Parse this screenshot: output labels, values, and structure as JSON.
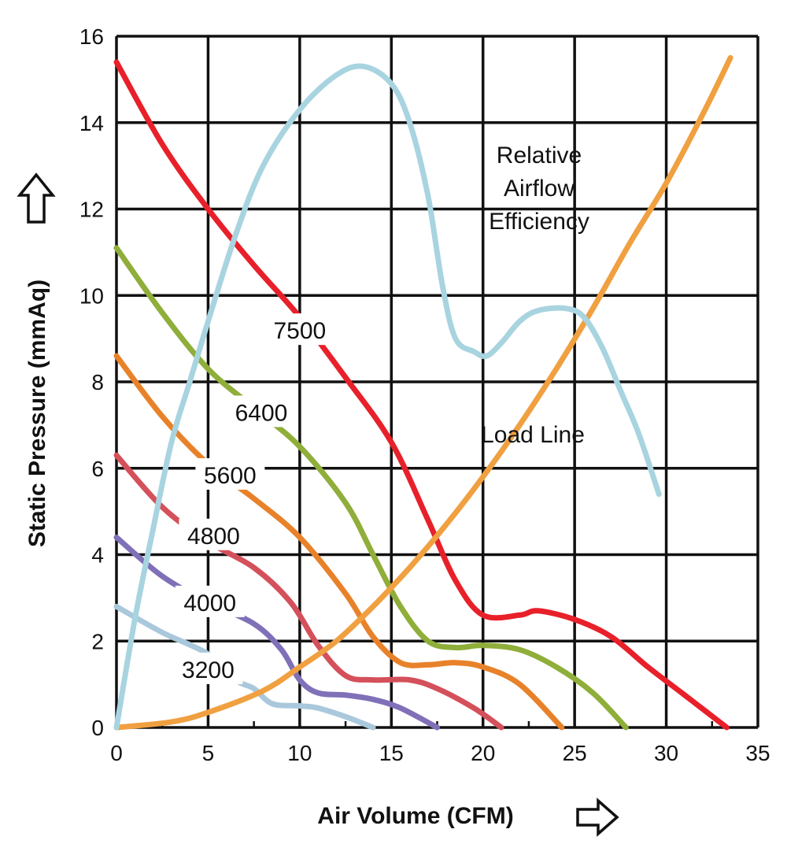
{
  "chart_data": {
    "type": "line",
    "xlabel": "Air Volume (CFM)",
    "ylabel": "Static Pressure (mmAq)",
    "xlim": [
      0,
      35
    ],
    "ylim": [
      0,
      16
    ],
    "xticks": [
      0,
      5,
      10,
      15,
      20,
      25,
      30,
      35
    ],
    "yticks": [
      0,
      2,
      4,
      6,
      8,
      10,
      12,
      14,
      16
    ],
    "grid": true,
    "annotations": [
      {
        "id": "efficiency",
        "lines": [
          "Relative",
          "Airflow",
          "Efficiency"
        ]
      },
      {
        "id": "load",
        "lines": [
          "Load Line"
        ]
      }
    ],
    "series": [
      {
        "name": "7500",
        "color": "#e8202a",
        "label_at": [
          10,
          9.2
        ],
        "points": [
          [
            0,
            15.4
          ],
          [
            2.5,
            13.5
          ],
          [
            5,
            12.0
          ],
          [
            7.5,
            10.7
          ],
          [
            10,
            9.5
          ],
          [
            12.5,
            8.1
          ],
          [
            15,
            6.6
          ],
          [
            17,
            4.8
          ],
          [
            18.5,
            3.4
          ],
          [
            20,
            2.6
          ],
          [
            22,
            2.6
          ],
          [
            23,
            2.7
          ],
          [
            25,
            2.5
          ],
          [
            27,
            2.1
          ],
          [
            29,
            1.4
          ],
          [
            31,
            0.75
          ],
          [
            33.3,
            0.0
          ]
        ]
      },
      {
        "name": "6400",
        "color": "#8fae3a",
        "label_at": [
          7.9,
          7.3
        ],
        "points": [
          [
            0,
            11.1
          ],
          [
            2.5,
            9.6
          ],
          [
            5,
            8.3
          ],
          [
            7.5,
            7.4
          ],
          [
            10,
            6.5
          ],
          [
            12.5,
            5.2
          ],
          [
            14,
            4.0
          ],
          [
            15.5,
            2.8
          ],
          [
            17,
            2.0
          ],
          [
            18.5,
            1.85
          ],
          [
            20,
            1.9
          ],
          [
            22,
            1.8
          ],
          [
            24,
            1.4
          ],
          [
            26,
            0.8
          ],
          [
            27.8,
            0.0
          ]
        ]
      },
      {
        "name": "5600",
        "color": "#e8822a",
        "label_at": [
          6.2,
          5.85
        ],
        "points": [
          [
            0,
            8.6
          ],
          [
            2.5,
            7.2
          ],
          [
            5,
            6.1
          ],
          [
            7.5,
            5.3
          ],
          [
            10,
            4.4
          ],
          [
            12.5,
            3.1
          ],
          [
            14,
            2.1
          ],
          [
            15.5,
            1.5
          ],
          [
            17,
            1.45
          ],
          [
            18.5,
            1.5
          ],
          [
            20,
            1.4
          ],
          [
            22,
            1.0
          ],
          [
            24.3,
            0.0
          ]
        ]
      },
      {
        "name": "4800",
        "color": "#d4505a",
        "label_at": [
          5.3,
          4.45
        ],
        "points": [
          [
            0,
            6.3
          ],
          [
            2.5,
            5.1
          ],
          [
            5,
            4.3
          ],
          [
            7.5,
            3.7
          ],
          [
            9.5,
            2.9
          ],
          [
            11,
            1.9
          ],
          [
            12.5,
            1.2
          ],
          [
            14,
            1.1
          ],
          [
            16,
            1.1
          ],
          [
            17.5,
            0.9
          ],
          [
            19.5,
            0.45
          ],
          [
            21,
            0.0
          ]
        ]
      },
      {
        "name": "4000",
        "color": "#8070b8",
        "label_at": [
          5.1,
          2.9
        ],
        "points": [
          [
            0,
            4.4
          ],
          [
            2.5,
            3.5
          ],
          [
            5,
            2.9
          ],
          [
            7.5,
            2.4
          ],
          [
            9,
            1.8
          ],
          [
            10,
            1.1
          ],
          [
            11,
            0.8
          ],
          [
            12.5,
            0.75
          ],
          [
            14,
            0.65
          ],
          [
            15.5,
            0.45
          ],
          [
            17.5,
            0.0
          ]
        ]
      },
      {
        "name": "3200",
        "color": "#aac8dc",
        "label_at": [
          5.0,
          1.35
        ],
        "points": [
          [
            0,
            2.8
          ],
          [
            2.5,
            2.2
          ],
          [
            5,
            1.7
          ],
          [
            6.5,
            1.1
          ],
          [
            7.5,
            0.9
          ],
          [
            8.5,
            0.55
          ],
          [
            10,
            0.5
          ],
          [
            11,
            0.45
          ],
          [
            12.5,
            0.25
          ],
          [
            14,
            0.0
          ]
        ]
      },
      {
        "name": "Relative Airflow Efficiency",
        "color": "#a8d4e0",
        "points": [
          [
            0,
            0.0
          ],
          [
            1,
            2.5
          ],
          [
            2,
            4.6
          ],
          [
            3,
            6.6
          ],
          [
            4,
            8.0
          ],
          [
            5,
            9.4
          ],
          [
            6.5,
            11.4
          ],
          [
            8,
            13.0
          ],
          [
            10,
            14.3
          ],
          [
            12,
            15.1
          ],
          [
            13.5,
            15.3
          ],
          [
            15,
            14.9
          ],
          [
            16,
            14.0
          ],
          [
            17,
            12.3
          ],
          [
            17.8,
            10.2
          ],
          [
            18.5,
            9.0
          ],
          [
            19.5,
            8.7
          ],
          [
            20.2,
            8.6
          ],
          [
            21,
            8.9
          ],
          [
            22,
            9.4
          ],
          [
            23,
            9.65
          ],
          [
            24.5,
            9.7
          ],
          [
            25.5,
            9.5
          ],
          [
            26.5,
            8.8
          ],
          [
            27.5,
            7.8
          ],
          [
            28.5,
            6.8
          ],
          [
            29.6,
            5.4
          ]
        ]
      },
      {
        "name": "Load Line",
        "color": "#f0a040",
        "points": [
          [
            0,
            0.0
          ],
          [
            3,
            0.13
          ],
          [
            5,
            0.35
          ],
          [
            8,
            0.85
          ],
          [
            10,
            1.4
          ],
          [
            12,
            2.0
          ],
          [
            14,
            2.8
          ],
          [
            16,
            3.7
          ],
          [
            18,
            4.7
          ],
          [
            20,
            5.8
          ],
          [
            22,
            7.0
          ],
          [
            24,
            8.3
          ],
          [
            26,
            9.7
          ],
          [
            28,
            11.2
          ],
          [
            30,
            12.6
          ],
          [
            32,
            14.2
          ],
          [
            33.5,
            15.5
          ]
        ]
      }
    ]
  }
}
